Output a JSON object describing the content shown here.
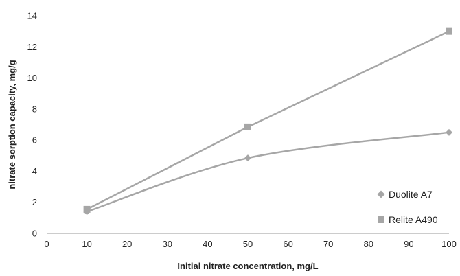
{
  "chart_data": {
    "type": "line",
    "title": "",
    "xlabel": "Initial nitrate concentration, mg/L",
    "ylabel": "nitrate sorption capacity, mg/g",
    "xlim": [
      0,
      100
    ],
    "ylim": [
      0,
      14
    ],
    "xticks": [
      0,
      10,
      20,
      30,
      40,
      50,
      60,
      70,
      80,
      90,
      100
    ],
    "yticks": [
      0,
      2,
      4,
      6,
      8,
      10,
      12,
      14
    ],
    "grid": false,
    "legend_position": "bottom-right",
    "series": [
      {
        "name": "Duolite A7",
        "marker": "diamond",
        "color": "#a6a6a6",
        "smooth": true,
        "x": [
          10,
          50,
          100
        ],
        "y": [
          1.4,
          4.85,
          6.5
        ]
      },
      {
        "name": "Relite A490",
        "marker": "square",
        "color": "#a6a6a6",
        "smooth": false,
        "x": [
          10,
          50,
          100
        ],
        "y": [
          1.55,
          6.85,
          13.0
        ]
      }
    ]
  }
}
